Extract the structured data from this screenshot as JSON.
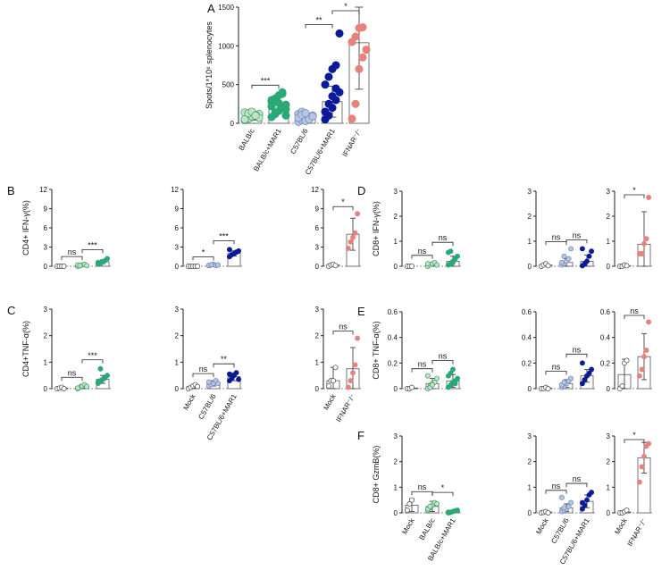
{
  "colors": {
    "mock": "#ffffff",
    "balbc": "#c2e3c9",
    "balbc_mar1": "#2aa876",
    "c57": "#b8c6e3",
    "c57_mar1": "#0b1a96",
    "ifnar": "#e8817b"
  },
  "chart_data": [
    {
      "type": "scatter",
      "panel": "A",
      "ylabel": "Spots/1*10⁶ splenocytes",
      "ylim": [
        0,
        1500
      ],
      "ticks": [
        0,
        500,
        1000,
        1500
      ],
      "categories": [
        "BALB/c",
        "BALB/c+MAR1",
        "C57BL/6",
        "C57BL/6+MAR1",
        "IFNAR⁻/⁻"
      ],
      "groups": [
        "balbc",
        "balbc_mar1",
        "c57",
        "c57_mar1",
        "ifnar"
      ],
      "means": [
        80,
        260,
        80,
        280,
        1040
      ],
      "sd": [
        40,
        100,
        50,
        200,
        600
      ],
      "points": [
        [
          40,
          60,
          80,
          100,
          120,
          140,
          60,
          90,
          110,
          70,
          50,
          130,
          150,
          100
        ],
        [
          80,
          120,
          160,
          200,
          240,
          280,
          320,
          360,
          400,
          180,
          220,
          140,
          260,
          380,
          100,
          300
        ],
        [
          20,
          40,
          60,
          80,
          100,
          120,
          150,
          30,
          50,
          90,
          70,
          110,
          130
        ],
        [
          50,
          100,
          200,
          300,
          400,
          500,
          600,
          700,
          750,
          1160,
          150,
          250,
          350,
          450
        ],
        [
          60,
          250,
          700,
          850,
          950,
          1050,
          1120,
          1230,
          1240
        ]
      ],
      "sigs": [
        {
          "a": 0,
          "b": 1,
          "text": "***"
        },
        {
          "a": 2,
          "b": 3,
          "text": "**"
        },
        {
          "a": 3,
          "b": 4,
          "text": "*"
        }
      ]
    },
    {
      "type": "scatter",
      "panel": "B",
      "ylabel": "CD4+ IFN-γ(%)",
      "ylim": [
        0,
        12
      ],
      "ticks": [
        0,
        3,
        6,
        9,
        12
      ],
      "groups": [
        "mock",
        "balbc",
        "balbc_mar1"
      ],
      "means": [
        0,
        0.2,
        0.7
      ],
      "sd": [
        0.1,
        0.2,
        0.3
      ],
      "points": [
        [
          0,
          0,
          0,
          0
        ],
        [
          0,
          0.1,
          0.2,
          0.3,
          0.1,
          0.2,
          0.1
        ],
        [
          0.3,
          0.5,
          0.7,
          0.9,
          1.2,
          0.6,
          0.4
        ]
      ],
      "sigs": [
        {
          "a": 0,
          "b": 1,
          "text": "ns"
        },
        {
          "a": 1,
          "b": 2,
          "text": "***"
        }
      ]
    },
    {
      "type": "scatter",
      "panel": "B2",
      "ylim": [
        0,
        12
      ],
      "ticks": [
        0,
        3,
        6,
        9,
        12
      ],
      "groups": [
        "mock",
        "c57",
        "c57_mar1"
      ],
      "means": [
        0,
        0.2,
        2.0
      ],
      "sd": [
        0.05,
        0.15,
        0.4
      ],
      "points": [
        [
          0,
          0,
          0,
          0,
          0
        ],
        [
          0.1,
          0.2,
          0.3,
          0.1,
          0.2,
          0.15,
          0.25
        ],
        [
          1.5,
          1.8,
          2.0,
          2.2,
          2.4,
          2.6
        ]
      ],
      "sigs": [
        {
          "a": 0,
          "b": 1,
          "text": "*"
        },
        {
          "a": 1,
          "b": 2,
          "text": "***"
        }
      ]
    },
    {
      "type": "scatter",
      "panel": "B3",
      "ylim": [
        0,
        12
      ],
      "ticks": [
        0,
        3,
        6,
        9,
        12
      ],
      "groups": [
        "mock",
        "ifnar"
      ],
      "means": [
        0.2,
        5.0
      ],
      "sd": [
        0.1,
        2.5
      ],
      "points": [
        [
          0,
          0.2,
          0.3,
          0.1
        ],
        [
          2.8,
          3.8,
          4.5,
          5.2,
          8.2
        ]
      ],
      "sigs": [
        {
          "a": 0,
          "b": 1,
          "text": "*"
        }
      ]
    },
    {
      "type": "scatter",
      "panel": "C",
      "ylabel": "CD4+TNF-α(%)",
      "ylim": [
        0,
        3
      ],
      "ticks": [
        0,
        1,
        2,
        3
      ],
      "groups": [
        "mock",
        "balbc",
        "balbc_mar1"
      ],
      "means": [
        0.02,
        0.08,
        0.35
      ],
      "sd": [
        0.05,
        0.08,
        0.15
      ],
      "points": [
        [
          0,
          0.02,
          0.05,
          0
        ],
        [
          0,
          0.05,
          0.1,
          0.15,
          0.08,
          0.02
        ],
        [
          0.2,
          0.3,
          0.35,
          0.4,
          0.5,
          0.25,
          0.75
        ]
      ],
      "sigs": [
        {
          "a": 0,
          "b": 1,
          "text": "ns"
        },
        {
          "a": 1,
          "b": 2,
          "text": "***"
        }
      ]
    },
    {
      "type": "scatter",
      "panel": "C2",
      "ylim": [
        0,
        3
      ],
      "ticks": [
        0,
        1,
        2,
        3
      ],
      "categories": [
        "Mock",
        "C57BL/6",
        "C57BL/6+MAR1"
      ],
      "groups": [
        "mock",
        "c57",
        "c57_mar1"
      ],
      "means": [
        0.08,
        0.2,
        0.45
      ],
      "sd": [
        0.05,
        0.1,
        0.15
      ],
      "points": [
        [
          0,
          0.05,
          0.1,
          0.15,
          0.08
        ],
        [
          0.1,
          0.15,
          0.2,
          0.3,
          0.2,
          0.25
        ],
        [
          0.3,
          0.4,
          0.5,
          0.6,
          0.35,
          0.55
        ]
      ],
      "sigs": [
        {
          "a": 0,
          "b": 1,
          "text": "ns"
        },
        {
          "a": 1,
          "b": 2,
          "text": "**"
        }
      ]
    },
    {
      "type": "scatter",
      "panel": "C3",
      "ylim": [
        0,
        3
      ],
      "ticks": [
        0,
        1,
        2,
        3
      ],
      "categories": [
        "Mock",
        "IFNAR⁻/⁻"
      ],
      "groups": [
        "mock",
        "ifnar"
      ],
      "means": [
        0.3,
        0.75
      ],
      "sd": [
        0.5,
        0.8
      ],
      "points": [
        [
          0.1,
          0.3,
          0.3,
          0.8
        ],
        [
          0.05,
          0.3,
          0.6,
          0.9,
          1.9
        ]
      ],
      "sigs": [
        {
          "a": 0,
          "b": 1,
          "text": "ns"
        }
      ]
    },
    {
      "type": "scatter",
      "panel": "D",
      "ylabel": "CD8+ IFN-γ(%)",
      "ylim": [
        0,
        3
      ],
      "ticks": [
        0,
        1,
        2,
        3
      ],
      "groups": [
        "mock",
        "balbc",
        "balbc_mar1"
      ],
      "means": [
        0,
        0.06,
        0.2
      ],
      "sd": [
        0.02,
        0.06,
        0.2
      ],
      "points": [
        [
          0,
          0,
          0
        ],
        [
          0,
          0.05,
          0.1,
          0.15,
          0.05,
          0.1
        ],
        [
          0.05,
          0.1,
          0.2,
          0.3,
          0.4,
          0.55,
          0.6,
          0.15
        ]
      ],
      "sigs": [
        {
          "a": 0,
          "b": 1,
          "text": "ns"
        },
        {
          "a": 1,
          "b": 2,
          "text": "ns"
        }
      ]
    },
    {
      "type": "scatter",
      "panel": "D2",
      "ylim": [
        0,
        3
      ],
      "ticks": [
        0,
        1,
        2,
        3
      ],
      "groups": [
        "mock",
        "c57",
        "c57_mar1"
      ],
      "means": [
        0.05,
        0.15,
        0.2
      ],
      "sd": [
        0.05,
        0.15,
        0.25
      ],
      "points": [
        [
          0,
          0.05,
          0.1,
          0.02
        ],
        [
          0.05,
          0.1,
          0.2,
          0.3,
          0.7,
          0.15,
          0.4
        ],
        [
          0.02,
          0.1,
          0.2,
          0.4,
          0.6,
          0.7
        ]
      ],
      "sigs": [
        {
          "a": 0,
          "b": 1,
          "text": "ns"
        },
        {
          "a": 1,
          "b": 2,
          "text": "ns"
        }
      ]
    },
    {
      "type": "scatter",
      "panel": "D3",
      "ylim": [
        0,
        3
      ],
      "ticks": [
        0,
        1,
        2,
        3
      ],
      "groups": [
        "mock",
        "ifnar"
      ],
      "means": [
        0.02,
        0.88
      ],
      "sd": [
        0.03,
        1.3
      ],
      "points": [
        [
          0,
          0,
          0.05,
          0.02
        ],
        [
          0.5,
          0.5,
          0.9,
          1.1,
          2.75
        ]
      ],
      "sigs": [
        {
          "a": 0,
          "b": 1,
          "text": "*"
        }
      ]
    },
    {
      "type": "scatter",
      "panel": "E",
      "ylabel": "CD8+ TNF-α(%)",
      "ylim": [
        0,
        0.6
      ],
      "ticks": [
        0,
        0.2,
        0.4,
        0.6
      ],
      "groups": [
        "mock",
        "balbc",
        "balbc_mar1"
      ],
      "means": [
        0.005,
        0.04,
        0.06
      ],
      "sd": [
        0.005,
        0.04,
        0.05
      ],
      "points": [
        [
          0,
          0,
          0.01
        ],
        [
          0,
          0.02,
          0.04,
          0.05,
          0.08,
          0.1,
          0.01,
          0.03
        ],
        [
          0.01,
          0.03,
          0.05,
          0.06,
          0.08,
          0.1,
          0.12,
          0.15,
          0.04
        ]
      ],
      "sigs": [
        {
          "a": 0,
          "b": 1,
          "text": "ns"
        },
        {
          "a": 1,
          "b": 2,
          "text": "ns"
        }
      ]
    },
    {
      "type": "scatter",
      "panel": "E2",
      "ylim": [
        0,
        0.6
      ],
      "ticks": [
        0,
        0.2,
        0.4,
        0.6
      ],
      "groups": [
        "mock",
        "c57",
        "c57_mar1"
      ],
      "means": [
        0.005,
        0.04,
        0.1
      ],
      "sd": [
        0.005,
        0.03,
        0.05
      ],
      "points": [
        [
          0,
          0,
          0.01,
          0
        ],
        [
          0.01,
          0.02,
          0.04,
          0.06,
          0.08,
          0.03,
          0.05
        ],
        [
          0.04,
          0.07,
          0.1,
          0.12,
          0.15,
          0.2
        ]
      ],
      "sigs": [
        {
          "a": 0,
          "b": 1,
          "text": "ns"
        },
        {
          "a": 1,
          "b": 2,
          "text": "ns"
        }
      ]
    },
    {
      "type": "scatter",
      "panel": "E3",
      "ylim": [
        0,
        0.6
      ],
      "ticks": [
        0,
        0.2,
        0.4,
        0.6
      ],
      "groups": [
        "mock",
        "ifnar"
      ],
      "means": [
        0.11,
        0.25
      ],
      "sd": [
        0.12,
        0.18
      ],
      "points": [
        [
          0,
          0.02,
          0.2,
          0.22
        ],
        [
          0.1,
          0.15,
          0.25,
          0.3,
          0.52
        ]
      ],
      "sigs": [
        {
          "a": 0,
          "b": 1,
          "text": "ns"
        }
      ]
    },
    {
      "type": "scatter",
      "panel": "F",
      "ylabel": "CD8+ GzmB(%)",
      "ylim": [
        0,
        3
      ],
      "ticks": [
        0,
        1,
        2,
        3
      ],
      "categories": [
        "Mock",
        "BALB/c",
        "BALB/c+MAR1"
      ],
      "groups": [
        "mock",
        "balbc",
        "balbc_mar1"
      ],
      "means": [
        0.3,
        0.25,
        0.05
      ],
      "sd": [
        0.25,
        0.2,
        0.05
      ],
      "points": [
        [
          0.1,
          0.35,
          0.5
        ],
        [
          0.1,
          0.2,
          0.3,
          0.4,
          0.35,
          0.15,
          0.25
        ],
        [
          0,
          0.02,
          0.05,
          0.08,
          0.1,
          0.03
        ]
      ],
      "sigs": [
        {
          "a": 0,
          "b": 1,
          "text": "ns"
        },
        {
          "a": 1,
          "b": 2,
          "text": "*"
        }
      ]
    },
    {
      "type": "scatter",
      "panel": "F2",
      "ylim": [
        0,
        3
      ],
      "ticks": [
        0,
        1,
        2,
        3
      ],
      "categories": [
        "Mock",
        "C57BL/6",
        "C57BL/6+MAR1"
      ],
      "groups": [
        "mock",
        "c57",
        "c57_mar1"
      ],
      "means": [
        0.03,
        0.2,
        0.45
      ],
      "sd": [
        0.03,
        0.15,
        0.25
      ],
      "points": [
        [
          0,
          0.02,
          0.05,
          0
        ],
        [
          0.05,
          0.1,
          0.15,
          0.25,
          0.4,
          0.6,
          0.2
        ],
        [
          0.15,
          0.3,
          0.5,
          0.7,
          0.8,
          0.4
        ]
      ],
      "sigs": [
        {
          "a": 0,
          "b": 1,
          "text": "ns"
        },
        {
          "a": 1,
          "b": 2,
          "text": "ns"
        }
      ]
    },
    {
      "type": "scatter",
      "panel": "F3",
      "ylim": [
        0,
        3
      ],
      "ticks": [
        0,
        1,
        2,
        3
      ],
      "categories": [
        "Mock",
        "IFNAR⁻/⁻"
      ],
      "groups": [
        "mock",
        "ifnar"
      ],
      "means": [
        0.03,
        2.15
      ],
      "sd": [
        0.05,
        0.6
      ],
      "points": [
        [
          0,
          0,
          0.05,
          0.1
        ],
        [
          1.2,
          1.8,
          2.2,
          2.6,
          2.7
        ]
      ],
      "sigs": [
        {
          "a": 0,
          "b": 1,
          "text": "*"
        }
      ]
    }
  ]
}
